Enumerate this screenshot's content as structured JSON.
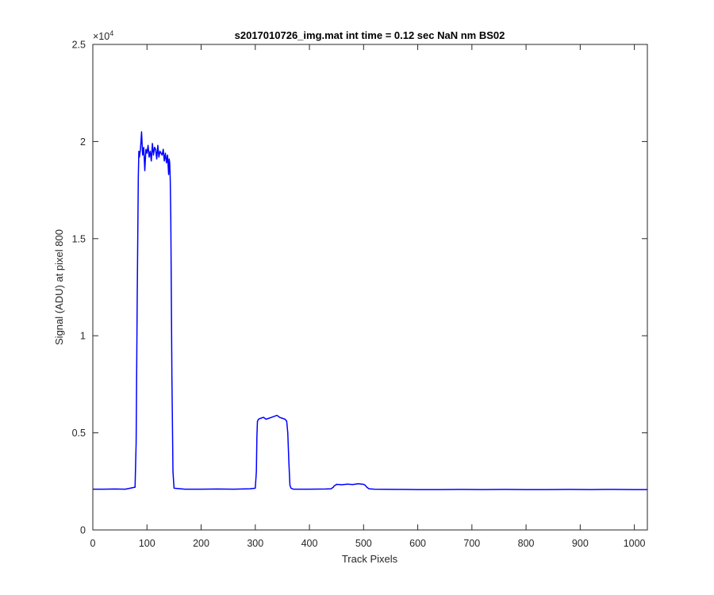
{
  "chart_data": {
    "type": "line",
    "title": "s2017010726_img.mat int time = 0.12 sec  NaN nm BS02",
    "xlabel": "Track Pixels",
    "ylabel": "Signal (ADU) at pixel 800",
    "y_exponent_label": "×10",
    "y_exponent_power": "4",
    "xlim": [
      0,
      1024
    ],
    "ylim": [
      0,
      25000
    ],
    "xticks": [
      0,
      100,
      200,
      300,
      400,
      500,
      600,
      700,
      800,
      900,
      1000
    ],
    "xtick_labels": [
      "0",
      "100",
      "200",
      "300",
      "400",
      "500",
      "600",
      "700",
      "800",
      "900",
      "1000"
    ],
    "yticks": [
      0,
      5000,
      10000,
      15000,
      20000,
      25000
    ],
    "ytick_labels": [
      "0",
      "0.5",
      "1",
      "1.5",
      "2",
      "2.5"
    ],
    "grid": false,
    "line_color": "#0000ff",
    "series": [
      {
        "x": [
          0,
          20,
          40,
          60,
          78,
          80,
          82,
          84,
          85,
          86,
          88,
          90,
          92,
          94,
          96,
          98,
          100,
          102,
          104,
          106,
          108,
          110,
          112,
          114,
          116,
          118,
          120,
          122,
          124,
          126,
          128,
          130,
          132,
          134,
          136,
          138,
          140,
          141,
          142,
          143,
          144,
          146,
          148,
          150,
          170,
          200,
          230,
          260,
          290,
          300,
          302,
          303,
          304,
          306,
          310,
          315,
          320,
          325,
          330,
          335,
          340,
          345,
          350,
          355,
          358,
          360,
          362,
          364,
          366,
          370,
          400,
          430,
          440,
          444,
          446,
          448,
          450,
          460,
          470,
          480,
          490,
          500,
          503,
          506,
          510,
          520,
          560,
          600,
          640,
          680,
          720,
          760,
          800,
          840,
          880,
          920,
          960,
          1000,
          1024
        ],
        "y": [
          2100,
          2100,
          2110,
          2100,
          2200,
          4500,
          12000,
          18200,
          19500,
          19200,
          19600,
          20500,
          19300,
          19700,
          18500,
          19600,
          19400,
          19800,
          19200,
          19500,
          19000,
          19900,
          19300,
          19700,
          19600,
          19100,
          19800,
          19200,
          19500,
          19400,
          19300,
          19600,
          19000,
          19400,
          18900,
          19300,
          18300,
          19100,
          18900,
          18000,
          16000,
          8000,
          3000,
          2150,
          2100,
          2100,
          2110,
          2100,
          2120,
          2150,
          3000,
          4800,
          5600,
          5700,
          5750,
          5800,
          5700,
          5750,
          5800,
          5850,
          5900,
          5800,
          5750,
          5700,
          5600,
          5000,
          3500,
          2300,
          2150,
          2100,
          2100,
          2110,
          2120,
          2200,
          2280,
          2300,
          2350,
          2330,
          2360,
          2340,
          2380,
          2350,
          2300,
          2200,
          2120,
          2100,
          2090,
          2080,
          2080,
          2090,
          2080,
          2090,
          2080,
          2080,
          2090,
          2080,
          2090,
          2080,
          2080
        ]
      }
    ]
  }
}
